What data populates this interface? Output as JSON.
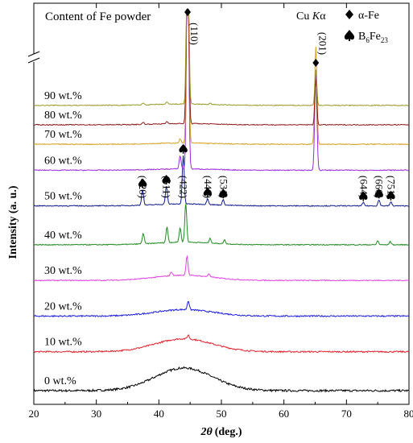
{
  "chart_data": {
    "type": "line",
    "title": "",
    "xlabel": "2θ (deg.)",
    "xlabel_symbol": "2θ",
    "xlabel_unit": "(deg.)",
    "ylabel": "Intensity (a. u.)",
    "xlim": [
      20,
      80
    ],
    "xticks": [
      "20",
      "30",
      "40",
      "50",
      "60",
      "70",
      "80"
    ],
    "grid": false,
    "axis_break": "y",
    "content_label": "Content of Fe powder",
    "radiation_label": "Cu Kα",
    "legend": [
      {
        "symbol": "diamond",
        "label": "α-Fe"
      },
      {
        "symbol": "spade",
        "label": "B6Fe23"
      }
    ],
    "legend_placement": "top-right",
    "series": [
      {
        "name": "0 wt.%",
        "color": "#000000",
        "baseline": 0,
        "hump": 35,
        "peaks": []
      },
      {
        "name": "10 wt.%",
        "color": "#e0202a",
        "baseline": 60,
        "hump": 20,
        "peaks": [
          [
            44.7,
            6
          ]
        ]
      },
      {
        "name": "20 wt.%",
        "color": "#1e1ee0",
        "baseline": 115,
        "hump": 10,
        "peaks": [
          [
            44.7,
            14
          ]
        ]
      },
      {
        "name": "30 wt.%",
        "color": "#e040e0",
        "baseline": 170,
        "hump": 8,
        "peaks": [
          [
            44.5,
            30
          ],
          [
            42,
            6
          ],
          [
            48,
            5
          ]
        ]
      },
      {
        "name": "40 wt.%",
        "color": "#1e8c1e",
        "baseline": 225,
        "hump": 4,
        "peaks": [
          [
            44.3,
            60
          ],
          [
            37.5,
            16
          ],
          [
            41.3,
            24
          ],
          [
            43.4,
            22
          ],
          [
            48.2,
            7
          ],
          [
            50.5,
            6
          ],
          [
            75,
            6
          ],
          [
            77,
            5
          ]
        ]
      },
      {
        "name": "50 wt.%",
        "color": "#101a8c",
        "baseline": 285,
        "hump": 3,
        "peaks": [
          [
            43.9,
            75
          ],
          [
            37.4,
            24
          ],
          [
            41.2,
            28
          ],
          [
            47.8,
            9
          ],
          [
            50.3,
            8
          ],
          [
            72.7,
            5
          ],
          [
            75.2,
            9
          ],
          [
            77.1,
            6
          ]
        ]
      },
      {
        "name": "60 wt.%",
        "color": "#9a28e0",
        "baseline": 340,
        "hump": 2,
        "peaks": [
          [
            44.6,
            350
          ],
          [
            65.1,
            150
          ],
          [
            43.4,
            20
          ]
        ]
      },
      {
        "name": "70 wt.%",
        "color": "#d4a020",
        "baseline": 380,
        "hump": 2,
        "peaks": [
          [
            44.6,
            350
          ],
          [
            65.1,
            150
          ],
          [
            43.4,
            6
          ]
        ]
      },
      {
        "name": "80 wt.%",
        "color": "#8c1a1a",
        "baseline": 410,
        "hump": 2,
        "peaks": [
          [
            44.6,
            350
          ],
          [
            65.1,
            70
          ],
          [
            37.5,
            3
          ],
          [
            41.3,
            3
          ]
        ]
      },
      {
        "name": "90 wt.%",
        "color": "#9a9a28",
        "baseline": 440,
        "hump": 2,
        "peaks": [
          [
            44.6,
            350
          ],
          [
            65.1,
            55
          ],
          [
            37.5,
            3
          ],
          [
            41.3,
            3
          ],
          [
            48.2,
            2
          ]
        ]
      }
    ],
    "phase_annotations": [
      {
        "hkl": "(110)",
        "x": 44.6,
        "phase": "α-Fe"
      },
      {
        "hkl": "(201)",
        "x": 65.1,
        "phase": "α-Fe"
      },
      {
        "hkl": "(420)",
        "x": 37.4,
        "phase": "B6Fe23"
      },
      {
        "hkl": "(511)",
        "x": 41.2,
        "phase": "B6Fe23"
      },
      {
        "hkl": "(422)",
        "x": 43.9,
        "phase": "B6Fe23"
      },
      {
        "hkl": "(440)",
        "x": 47.8,
        "phase": "B6Fe23"
      },
      {
        "hkl": "(531)",
        "x": 50.3,
        "phase": "B6Fe23"
      },
      {
        "hkl": "(644)",
        "x": 72.7,
        "phase": "B6Fe23"
      },
      {
        "hkl": "(660)",
        "x": 75.2,
        "phase": "B6Fe23"
      },
      {
        "hkl": "(751)",
        "x": 77.1,
        "phase": "B6Fe23"
      }
    ],
    "colors": {
      "axis": "#000000",
      "background": "#ffffff"
    }
  }
}
